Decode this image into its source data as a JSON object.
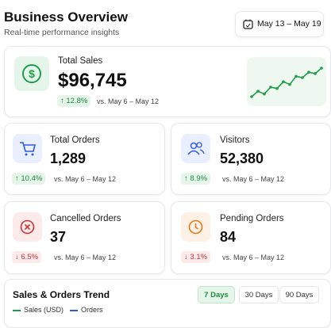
{
  "header": {
    "title": "Business Overview",
    "subtitle": "Real-time performance insights",
    "date_range": "May 13 – May 19"
  },
  "cards": [
    {
      "label": "Total Sales",
      "value": "$96,745",
      "change": "12.8%",
      "direction": "up",
      "comparison": "vs. May 6 – May 12",
      "sparkline": {
        "color": "#1e9e4a",
        "values": [
          10,
          14,
          12,
          17,
          16,
          21,
          19,
          25,
          24,
          28,
          27,
          31
        ]
      }
    },
    {
      "label": "Total Orders",
      "value": "1,289",
      "change": "10.4%",
      "direction": "up",
      "comparison": "vs. May 6 – May 12"
    },
    {
      "label": "Visitors",
      "value": "52,380",
      "change": "8.9%",
      "direction": "up",
      "comparison": "vs. May 6 – May 12"
    },
    {
      "label": "Cancelled Orders",
      "value": "37",
      "change": "6.5%",
      "direction": "down",
      "comparison": "vs. May 6 – May 12"
    },
    {
      "label": "Pending Orders",
      "value": "84",
      "change": "3.1%",
      "direction": "down",
      "comparison": "vs. May 6 – May 12"
    }
  ],
  "trend": {
    "title": "Sales & Orders Trend",
    "tabs": [
      "7 Days",
      "30 Days",
      "90 Days"
    ],
    "active_tab": 0,
    "legend": [
      {
        "name": "Sales (USD)",
        "color": "#1e9e4a"
      },
      {
        "name": "Orders",
        "color": "#2f5be0"
      }
    ]
  }
}
